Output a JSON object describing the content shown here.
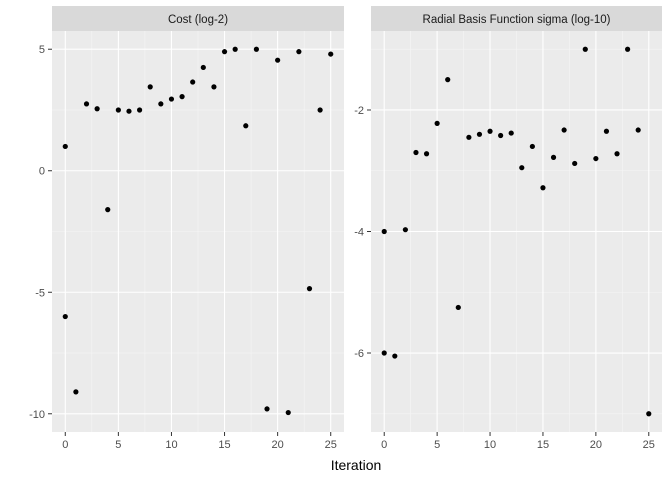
{
  "chart_data": {
    "type": "scatter",
    "xlabel": "Iteration",
    "colors": {
      "panel_background": "#ebebeb",
      "strip_background": "#d9d9d9",
      "grid_major": "#ffffff",
      "grid_minor": "#f5f5f5",
      "point": "#000000",
      "tick_text": "#4d4d4d"
    },
    "panels": [
      {
        "title": "Cost (log-2)",
        "xlim": [
          -1.25,
          26.25
        ],
        "ylim": [
          -10.75,
          5.75
        ],
        "xticks": [
          0,
          5,
          10,
          15,
          20,
          25
        ],
        "yticks": [
          -10,
          -5,
          0,
          5
        ],
        "ytick_labels": [
          "-10",
          "-5",
          "0",
          "5"
        ],
        "points": [
          {
            "x": 0,
            "y": -6.0
          },
          {
            "x": 0,
            "y": 1.0
          },
          {
            "x": 1,
            "y": -9.1
          },
          {
            "x": 2,
            "y": 2.75
          },
          {
            "x": 3,
            "y": 2.55
          },
          {
            "x": 4,
            "y": -1.6
          },
          {
            "x": 5,
            "y": 2.5
          },
          {
            "x": 6,
            "y": 2.45
          },
          {
            "x": 7,
            "y": 2.5
          },
          {
            "x": 8,
            "y": 3.45
          },
          {
            "x": 9,
            "y": 2.75
          },
          {
            "x": 10,
            "y": 2.95
          },
          {
            "x": 11,
            "y": 3.05
          },
          {
            "x": 12,
            "y": 3.65
          },
          {
            "x": 13,
            "y": 4.25
          },
          {
            "x": 14,
            "y": 3.45
          },
          {
            "x": 15,
            "y": 4.9
          },
          {
            "x": 16,
            "y": 5.0
          },
          {
            "x": 17,
            "y": 1.85
          },
          {
            "x": 18,
            "y": 5.0
          },
          {
            "x": 19,
            "y": -9.8
          },
          {
            "x": 20,
            "y": 4.55
          },
          {
            "x": 21,
            "y": -9.95
          },
          {
            "x": 22,
            "y": 4.9
          },
          {
            "x": 23,
            "y": -4.85
          },
          {
            "x": 24,
            "y": 2.5
          },
          {
            "x": 25,
            "y": 4.8
          }
        ]
      },
      {
        "title": "Radial Basis Function sigma (log-10)",
        "xlim": [
          -1.25,
          26.25
        ],
        "ylim": [
          -7.3,
          -0.7
        ],
        "xticks": [
          0,
          5,
          10,
          15,
          20,
          25
        ],
        "yticks": [
          -6,
          -4,
          -2
        ],
        "ytick_labels": [
          "-6",
          "-4",
          "-2"
        ],
        "points": [
          {
            "x": 0,
            "y": -4.0
          },
          {
            "x": 0,
            "y": -6.0
          },
          {
            "x": 1,
            "y": -6.05
          },
          {
            "x": 2,
            "y": -3.97
          },
          {
            "x": 3,
            "y": -2.7
          },
          {
            "x": 4,
            "y": -2.72
          },
          {
            "x": 5,
            "y": -2.22
          },
          {
            "x": 6,
            "y": -1.5
          },
          {
            "x": 7,
            "y": -5.25
          },
          {
            "x": 8,
            "y": -2.45
          },
          {
            "x": 9,
            "y": -2.4
          },
          {
            "x": 10,
            "y": -2.35
          },
          {
            "x": 11,
            "y": -2.42
          },
          {
            "x": 12,
            "y": -2.38
          },
          {
            "x": 13,
            "y": -2.95
          },
          {
            "x": 14,
            "y": -2.6
          },
          {
            "x": 15,
            "y": -3.28
          },
          {
            "x": 16,
            "y": -2.78
          },
          {
            "x": 17,
            "y": -2.33
          },
          {
            "x": 18,
            "y": -2.88
          },
          {
            "x": 19,
            "y": -1.0
          },
          {
            "x": 20,
            "y": -2.8
          },
          {
            "x": 21,
            "y": -2.35
          },
          {
            "x": 22,
            "y": -2.72
          },
          {
            "x": 23,
            "y": -1.0
          },
          {
            "x": 24,
            "y": -2.33
          },
          {
            "x": 25,
            "y": -7.0
          }
        ]
      }
    ]
  }
}
